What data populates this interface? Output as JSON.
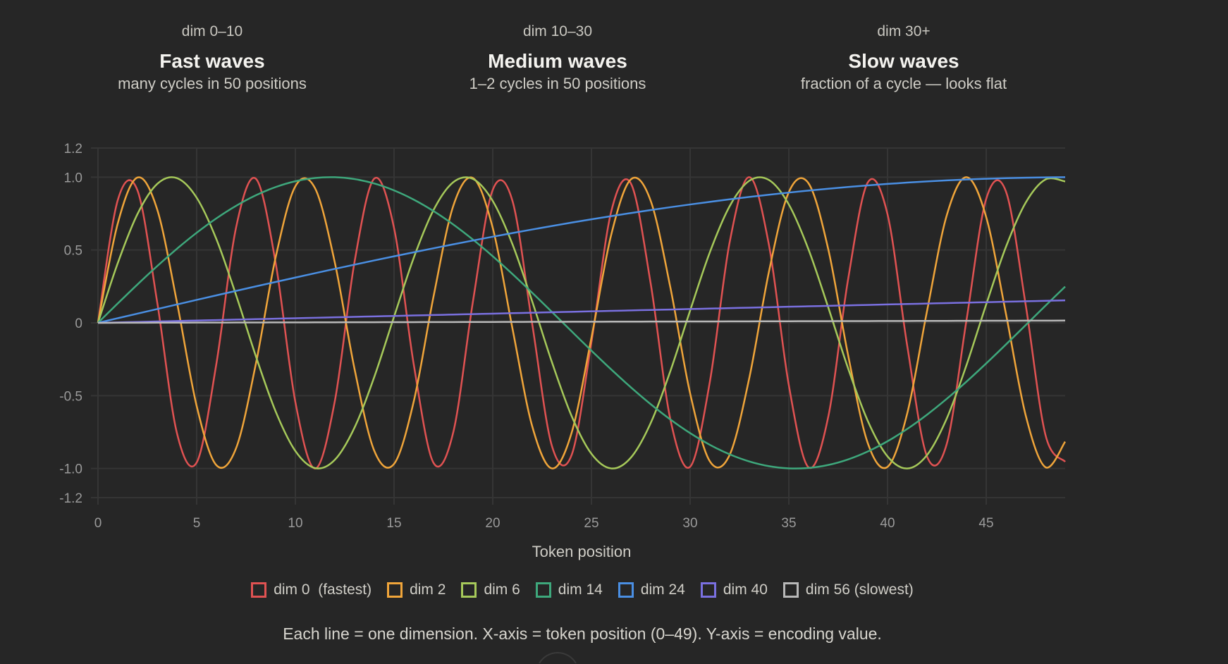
{
  "header": [
    {
      "dim": "dim 0–10",
      "title": "Fast waves",
      "subtitle": "many cycles in 50 positions"
    },
    {
      "dim": "dim 10–30",
      "title": "Medium waves",
      "subtitle": "1–2 cycles in 50 positions"
    },
    {
      "dim": "dim 30+",
      "title": "Slow waves",
      "subtitle": "fraction of a cycle — looks flat"
    }
  ],
  "chart_data": {
    "type": "line",
    "function": "sin(position / 10000^(dim/64))",
    "x": {
      "label": "Token position",
      "range": [
        0,
        49
      ],
      "ticks": [
        "0",
        "5",
        "10",
        "15",
        "20",
        "25",
        "30",
        "35",
        "40",
        "45"
      ]
    },
    "y": {
      "range": [
        -1.2,
        1.2
      ],
      "ticks": [
        "1.2",
        "1.0",
        "0.5",
        "0",
        "-0.5",
        "-1.0",
        "-1.2"
      ],
      "tick_values": [
        1.2,
        1.0,
        0.5,
        0,
        -0.5,
        -1.0,
        -1.2
      ]
    },
    "grid": true,
    "legend_placement": "bottom",
    "series": [
      {
        "name": "dim 0  (fastest)",
        "dim": 0,
        "color": "#e05252"
      },
      {
        "name": "dim 2",
        "dim": 2,
        "color": "#f0a53a"
      },
      {
        "name": "dim 6",
        "dim": 6,
        "color": "#a6c95a"
      },
      {
        "name": "dim 14",
        "dim": 14,
        "color": "#3ea87c"
      },
      {
        "name": "dim 24",
        "dim": 24,
        "color": "#4a8fe3"
      },
      {
        "name": "dim 40",
        "dim": 40,
        "color": "#7a70e0"
      },
      {
        "name": "dim 56 (slowest)",
        "dim": 56,
        "color": "#b8b8b8"
      }
    ]
  },
  "caption": "Each line = one dimension. X-axis = token position (0–49). Y-axis = encoding value."
}
